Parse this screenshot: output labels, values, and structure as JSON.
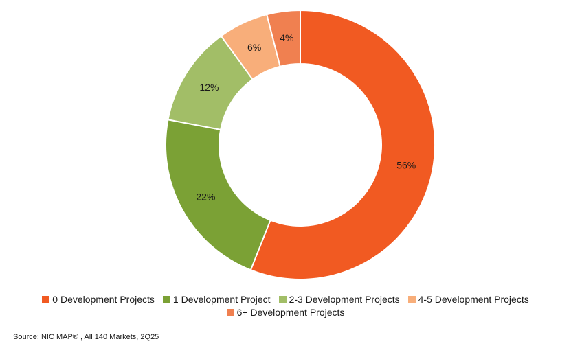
{
  "chart_data": {
    "type": "pie",
    "variant": "donut",
    "title": "",
    "slices": [
      {
        "label": "0 Development Projects",
        "value": 56,
        "display": "56%",
        "color": "#F15A22"
      },
      {
        "label": "1 Development Project",
        "value": 22,
        "display": "22%",
        "color": "#7BA135"
      },
      {
        "label": "2-3 Development Projects",
        "value": 12,
        "display": "12%",
        "color": "#A2BE67"
      },
      {
        "label": "4-5 Development Projects",
        "value": 6,
        "display": "6%",
        "color": "#F8AE7A"
      },
      {
        "label": "6+ Development Projects",
        "value": 4,
        "display": "4%",
        "color": "#F08050"
      }
    ],
    "legend_position": "bottom"
  },
  "source": "Source: NIC MAP® , All 140 Markets, 2Q25"
}
